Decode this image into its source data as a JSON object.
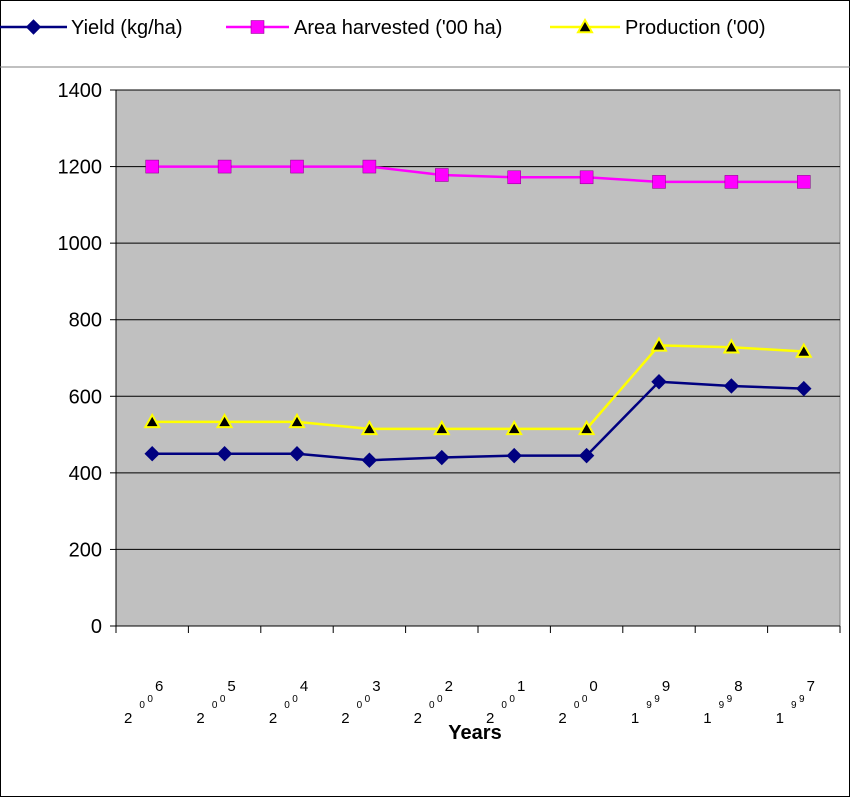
{
  "chart_data": {
    "type": "line",
    "title": "",
    "xlabel": "Years",
    "ylabel": "",
    "ylim": [
      0,
      1400
    ],
    "y_ticks": [
      0,
      200,
      400,
      600,
      800,
      1000,
      1200,
      1400
    ],
    "grid": true,
    "legend_position": "top",
    "plot_background": "#c0c0c0",
    "categories": [
      "2006",
      "2005",
      "2004",
      "2003",
      "2002",
      "2001",
      "2000",
      "1999",
      "1998",
      "1997"
    ],
    "category_label_chars": [
      [
        "2",
        "0",
        "0",
        "6"
      ],
      [
        "2",
        "0",
        "0",
        "5"
      ],
      [
        "2",
        "0",
        "0",
        "4"
      ],
      [
        "2",
        "0",
        "0",
        "3"
      ],
      [
        "2",
        "0",
        "0",
        "2"
      ],
      [
        "2",
        "0",
        "0",
        "1"
      ],
      [
        "2",
        "0",
        "0",
        "0"
      ],
      [
        "1",
        "9",
        "9",
        "9"
      ],
      [
        "1",
        "9",
        "9",
        "8"
      ],
      [
        "1",
        "9",
        "9",
        "7"
      ]
    ],
    "series": [
      {
        "name": "Yield (kg/ha)",
        "color": "#000080",
        "marker": "diamond",
        "values": [
          450,
          450,
          450,
          433,
          440,
          445,
          445,
          638,
          627,
          620
        ]
      },
      {
        "name": "Area harvested ('00 ha)",
        "color": "#ff00ff",
        "marker": "square",
        "values": [
          1200,
          1200,
          1200,
          1200,
          1178,
          1172,
          1172,
          1160,
          1160,
          1160
        ]
      },
      {
        "name": "Production ('00)",
        "color": "#ffff00",
        "marker_fill": "#000000",
        "marker": "triangle",
        "values": [
          533,
          533,
          533,
          515,
          515,
          515,
          515,
          733,
          728,
          717
        ]
      }
    ]
  }
}
